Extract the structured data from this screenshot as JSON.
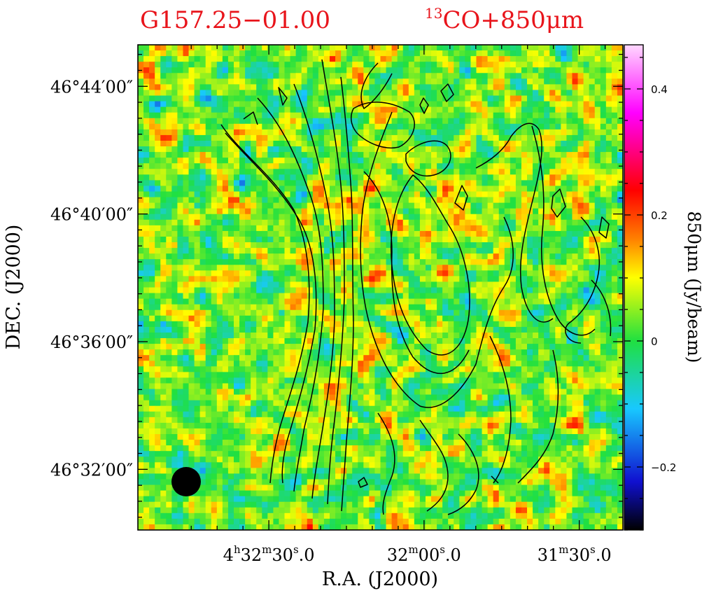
{
  "chart_data": {
    "type": "heatmap",
    "title_left": "G157.25−01.00",
    "title_right_sup": "13",
    "title_right": "CO+850μm",
    "xlabel": "R.A. (J2000)",
    "ylabel": "DEC. (J2000)",
    "colorbar_label": "850μm (Jy/beam)",
    "colorbar": {
      "range": [
        -0.3,
        0.47
      ],
      "ticks": [
        {
          "v": 0.4,
          "label": "0.4"
        },
        {
          "v": 0.2,
          "label": "0.2"
        },
        {
          "v": 0.0,
          "label": "0"
        },
        {
          "v": -0.2,
          "label": "−0.2"
        }
      ]
    },
    "ra_ticks": [
      {
        "h": "4",
        "m": "32",
        "s": "30",
        "frac": "0",
        "full": true,
        "pos": 0.27
      },
      {
        "m": "32",
        "s": "00",
        "frac": "0",
        "full": false,
        "pos": 0.59
      },
      {
        "m": "31",
        "s": "30",
        "frac": "0",
        "full": false,
        "pos": 0.9
      }
    ],
    "dec_ticks": [
      {
        "label": "46°44′00″",
        "dec_arcmin": 44
      },
      {
        "label": "46°40′00″",
        "dec_arcmin": 40
      },
      {
        "label": "46°36′00″",
        "dec_arcmin": 36
      },
      {
        "label": "46°32′00″",
        "dec_arcmin": 32
      }
    ],
    "dec_range_arcmin": [
      30.1,
      45.3
    ],
    "beam": "filled circle, lower-left",
    "colormap": [
      "#000000",
      "#1010d0",
      "#18c8ff",
      "#20e040",
      "#ffff00",
      "#ff8000",
      "#ff0000",
      "#ff00ff",
      "#ffffff"
    ]
  }
}
